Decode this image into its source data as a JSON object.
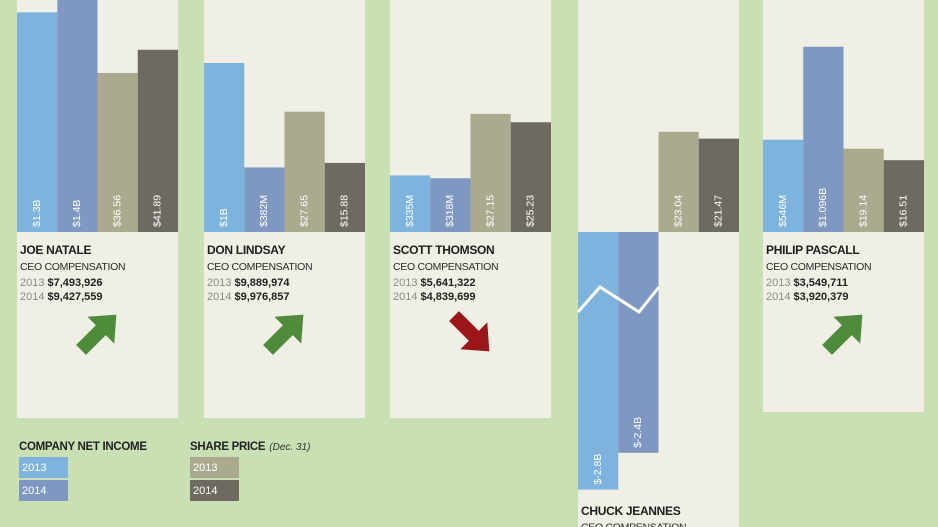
{
  "panels": [
    {
      "name": "JOE NATALE",
      "subtitle": "CEO COMPENSATION",
      "compensation": [
        {
          "year": "2013",
          "amount": "$7,493,926"
        },
        {
          "year": "2014",
          "amount": "$9,427,559"
        }
      ],
      "trend": "up",
      "trend_color": "#4f8b3b",
      "net_income": [
        1300,
        1400
      ],
      "net_income_labels": [
        "$1.3B",
        "$1.4B"
      ],
      "share_price": [
        36.56,
        41.89
      ],
      "share_price_labels": [
        "$36.56",
        "$41.89"
      ]
    },
    {
      "name": "DON LINDSAY",
      "subtitle": "CEO COMPENSATION",
      "compensation": [
        {
          "year": "2013",
          "amount": "$9,889,974"
        },
        {
          "year": "2014",
          "amount": "$9,976,857"
        }
      ],
      "trend": "up",
      "trend_color": "#4f8b3b",
      "net_income": [
        1000,
        382
      ],
      "net_income_labels": [
        "$1B",
        "$382M"
      ],
      "share_price": [
        27.65,
        15.88
      ],
      "share_price_labels": [
        "$27.65",
        "$15.88"
      ]
    },
    {
      "name": "SCOTT THOMSON",
      "subtitle": "CEO COMPENSATION",
      "compensation": [
        {
          "year": "2013",
          "amount": "$5,641,322"
        },
        {
          "year": "2014",
          "amount": "$4,839,699"
        }
      ],
      "trend": "down",
      "trend_color": "#9a1618",
      "net_income": [
        335,
        318
      ],
      "net_income_labels": [
        "$335M",
        "$318M"
      ],
      "share_price": [
        27.15,
        25.23
      ],
      "share_price_labels": [
        "$27.15",
        "$25.23"
      ]
    },
    {
      "name": "CHUCK JEANNES",
      "subtitle": "CEO COMPENSATION",
      "compensation": [],
      "net_income": [
        -2800,
        -2400
      ],
      "net_income_labels": [
        "$-2.8B",
        "$-2.4B"
      ],
      "share_price": [
        23.04,
        21.47
      ],
      "share_price_labels": [
        "$23.04",
        "$21.47"
      ]
    },
    {
      "name": "PHILIP PASCALL",
      "subtitle": "CEO COMPENSATION",
      "compensation": [
        {
          "year": "2013",
          "amount": "$3,549,711"
        },
        {
          "year": "2014",
          "amount": "$3,920,379"
        }
      ],
      "trend": "up",
      "trend_color": "#4f8b3b",
      "net_income": [
        546,
        1096
      ],
      "net_income_labels": [
        "$546M",
        "$1.096B"
      ],
      "share_price": [
        19.14,
        16.51
      ],
      "share_price_labels": [
        "$19.14",
        "$16.51"
      ]
    }
  ],
  "legend": {
    "net_income": {
      "title": "COMPANY NET INCOME",
      "items": [
        {
          "label": "2013",
          "color": "#7db3dd"
        },
        {
          "label": "2014",
          "color": "#7f98c2"
        }
      ]
    },
    "share_price": {
      "title": "SHARE PRICE",
      "note": "(Dec. 31)",
      "items": [
        {
          "label": "2013",
          "color": "#abaa8e"
        },
        {
          "label": "2014",
          "color": "#6f6a61"
        }
      ]
    }
  }
}
